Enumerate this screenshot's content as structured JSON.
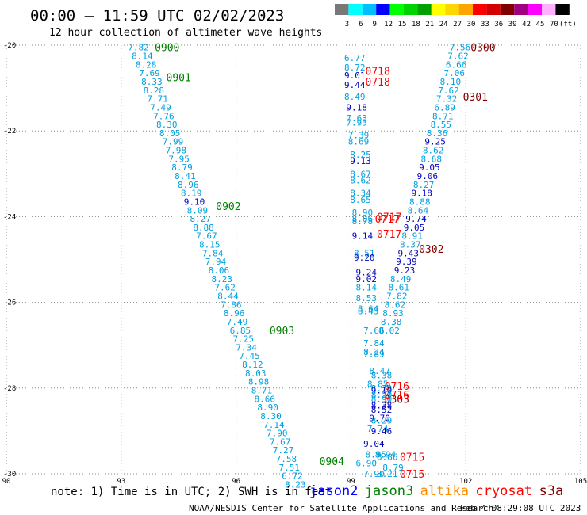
{
  "header": {
    "title": "00:00 – 11:59 UTC 02/02/2023",
    "subtitle": "12 hour collection of altimeter wave heights"
  },
  "colorbar": {
    "colors": [
      "#787878",
      "#00ffff",
      "#00bfff",
      "#0000ff",
      "#00ff00",
      "#00d400",
      "#00a000",
      "#ffff00",
      "#ffd700",
      "#ffa500",
      "#ff0000",
      "#d40000",
      "#800000",
      "#a00080",
      "#ff00ff",
      "#ffb0ff",
      "#000000"
    ],
    "labels": [
      "3",
      "6",
      "9",
      "12",
      "15",
      "18",
      "21",
      "24",
      "27",
      "30",
      "33",
      "36",
      "39",
      "42",
      "45",
      "70",
      "(ft)"
    ]
  },
  "chart_data": {
    "type": "scatter",
    "x_ticks": [
      "90",
      "93",
      "96",
      "99",
      "102",
      "105"
    ],
    "y_ticks": [
      "-20",
      "-22",
      "-24",
      "-26",
      "-28",
      "-30"
    ],
    "xlim": [
      90,
      105
    ],
    "ylim": [
      -30,
      -20
    ],
    "grid": "dotted",
    "value_colors": {
      "light": "#00a0e0",
      "dark": "#0000c0",
      "red": "#ff0000"
    },
    "tracks": [
      {
        "satellite": "jason3",
        "value_color": "light",
        "points": [
          {
            "lon": 93.45,
            "lat": -20.05,
            "v": "7.82"
          },
          {
            "lon": 93.55,
            "lat": -20.25,
            "v": "8.14"
          },
          {
            "lon": 93.65,
            "lat": -20.45,
            "v": "8.28"
          },
          {
            "lon": 93.74,
            "lat": -20.65,
            "v": "7.69"
          },
          {
            "lon": 93.8,
            "lat": -20.85,
            "v": "8.33"
          },
          {
            "lon": 93.85,
            "lat": -21.05,
            "v": "8.28"
          },
          {
            "lon": 93.95,
            "lat": -21.25,
            "v": "7.71"
          },
          {
            "lon": 94.03,
            "lat": -21.45,
            "v": "7.49"
          },
          {
            "lon": 94.11,
            "lat": -21.65,
            "v": "7.76"
          },
          {
            "lon": 94.19,
            "lat": -21.85,
            "v": "8.30"
          },
          {
            "lon": 94.27,
            "lat": -22.05,
            "v": "8.05"
          },
          {
            "lon": 94.35,
            "lat": -22.25,
            "v": "7.99"
          },
          {
            "lon": 94.43,
            "lat": -22.45,
            "v": "7.98"
          },
          {
            "lon": 94.51,
            "lat": -22.65,
            "v": "7.95"
          },
          {
            "lon": 94.59,
            "lat": -22.85,
            "v": "8.79"
          },
          {
            "lon": 94.67,
            "lat": -23.05,
            "v": "8.41"
          },
          {
            "lon": 94.75,
            "lat": -23.25,
            "v": "8.96"
          },
          {
            "lon": 94.83,
            "lat": -23.45,
            "v": "8.19"
          },
          {
            "lon": 94.91,
            "lat": -23.65,
            "v": "9.10",
            "c": "dark"
          },
          {
            "lon": 94.99,
            "lat": -23.85,
            "v": "8.09"
          },
          {
            "lon": 95.07,
            "lat": -24.05,
            "v": "8.27"
          },
          {
            "lon": 95.15,
            "lat": -24.25,
            "v": "8.88"
          },
          {
            "lon": 95.23,
            "lat": -24.45,
            "v": "7.67"
          },
          {
            "lon": 95.31,
            "lat": -24.65,
            "v": "8.15"
          },
          {
            "lon": 95.39,
            "lat": -24.85,
            "v": "7.84"
          },
          {
            "lon": 95.47,
            "lat": -25.05,
            "v": "7.94"
          },
          {
            "lon": 95.55,
            "lat": -25.25,
            "v": "8.06"
          },
          {
            "lon": 95.63,
            "lat": -25.45,
            "v": "8.23"
          },
          {
            "lon": 95.71,
            "lat": -25.65,
            "v": "7.62"
          },
          {
            "lon": 95.79,
            "lat": -25.85,
            "v": "8.44"
          },
          {
            "lon": 95.87,
            "lat": -26.05,
            "v": "7.86"
          },
          {
            "lon": 95.95,
            "lat": -26.25,
            "v": "8.96"
          },
          {
            "lon": 96.03,
            "lat": -26.45,
            "v": "7.49"
          },
          {
            "lon": 96.11,
            "lat": -26.65,
            "v": "6.85"
          },
          {
            "lon": 96.19,
            "lat": -26.85,
            "v": "7.25"
          },
          {
            "lon": 96.27,
            "lat": -27.05,
            "v": "7.34"
          },
          {
            "lon": 96.35,
            "lat": -27.25,
            "v": "7.45"
          },
          {
            "lon": 96.43,
            "lat": -27.45,
            "v": "8.12"
          },
          {
            "lon": 96.51,
            "lat": -27.65,
            "v": "8.03"
          },
          {
            "lon": 96.59,
            "lat": -27.85,
            "v": "8.98"
          },
          {
            "lon": 96.67,
            "lat": -28.05,
            "v": "8.71"
          },
          {
            "lon": 96.75,
            "lat": -28.25,
            "v": "8.66"
          },
          {
            "lon": 96.83,
            "lat": -28.45,
            "v": "8.90"
          },
          {
            "lon": 96.91,
            "lat": -28.65,
            "v": "8.30"
          },
          {
            "lon": 96.99,
            "lat": -28.85,
            "v": "7.14"
          },
          {
            "lon": 97.07,
            "lat": -29.05,
            "v": "7.90"
          },
          {
            "lon": 97.15,
            "lat": -29.25,
            "v": "7.67"
          },
          {
            "lon": 97.23,
            "lat": -29.45,
            "v": "7.27"
          },
          {
            "lon": 97.31,
            "lat": -29.65,
            "v": "7.58"
          },
          {
            "lon": 97.39,
            "lat": -29.85,
            "v": "7.51"
          },
          {
            "lon": 97.47,
            "lat": -30.05,
            "v": "6.72"
          },
          {
            "lon": 97.55,
            "lat": -30.25,
            "v": "8.23"
          }
        ]
      },
      {
        "satellite": "jason3",
        "value_color": "light",
        "points": [
          {
            "lon": 101.85,
            "lat": -20.05,
            "v": "7.56"
          },
          {
            "lon": 101.8,
            "lat": -20.25,
            "v": "7.62"
          },
          {
            "lon": 101.75,
            "lat": -20.45,
            "v": "6.66"
          },
          {
            "lon": 101.7,
            "lat": -20.65,
            "v": "7.06"
          },
          {
            "lon": 101.6,
            "lat": -20.85,
            "v": "8.10"
          },
          {
            "lon": 101.55,
            "lat": -21.05,
            "v": "7.62"
          },
          {
            "lon": 101.5,
            "lat": -21.25,
            "v": "7.32"
          },
          {
            "lon": 101.45,
            "lat": -21.45,
            "v": "6.89"
          },
          {
            "lon": 101.4,
            "lat": -21.65,
            "v": "8.71"
          },
          {
            "lon": 101.35,
            "lat": -21.85,
            "v": "8.55"
          },
          {
            "lon": 101.25,
            "lat": -22.05,
            "v": "8.36"
          },
          {
            "lon": 101.2,
            "lat": -22.25,
            "v": "9.25",
            "c": "dark"
          },
          {
            "lon": 101.15,
            "lat": -22.45,
            "v": "8.62"
          },
          {
            "lon": 101.1,
            "lat": -22.65,
            "v": "8.68"
          },
          {
            "lon": 101.05,
            "lat": -22.85,
            "v": "9.05",
            "c": "dark"
          },
          {
            "lon": 101.0,
            "lat": -23.05,
            "v": "9.06",
            "c": "dark"
          },
          {
            "lon": 100.9,
            "lat": -23.25,
            "v": "8.27"
          },
          {
            "lon": 100.85,
            "lat": -23.45,
            "v": "9.18",
            "c": "dark"
          },
          {
            "lon": 100.8,
            "lat": -23.65,
            "v": "8.88"
          },
          {
            "lon": 100.75,
            "lat": -23.85,
            "v": "8.64"
          },
          {
            "lon": 100.7,
            "lat": -24.05,
            "v": "9.74",
            "c": "dark"
          },
          {
            "lon": 100.65,
            "lat": -24.25,
            "v": "9.05",
            "c": "dark"
          },
          {
            "lon": 100.6,
            "lat": -24.45,
            "v": "8.91"
          },
          {
            "lon": 100.55,
            "lat": -24.65,
            "v": "8.37"
          },
          {
            "lon": 100.5,
            "lat": -24.85,
            "v": "9.43",
            "c": "dark"
          },
          {
            "lon": 100.45,
            "lat": -25.05,
            "v": "9.39",
            "c": "dark"
          },
          {
            "lon": 100.4,
            "lat": -25.25,
            "v": "9.23",
            "c": "dark"
          },
          {
            "lon": 100.3,
            "lat": -25.45,
            "v": "8.49"
          },
          {
            "lon": 100.25,
            "lat": -25.65,
            "v": "8.61"
          },
          {
            "lon": 100.2,
            "lat": -25.85,
            "v": "7.82"
          },
          {
            "lon": 100.15,
            "lat": -26.05,
            "v": "8.62"
          },
          {
            "lon": 100.1,
            "lat": -26.25,
            "v": "8.93"
          },
          {
            "lon": 100.05,
            "lat": -26.45,
            "v": "8.38"
          },
          {
            "lon": 100.0,
            "lat": -26.65,
            "v": "8.02"
          }
        ]
      },
      {
        "satellite": "mixed",
        "value_color": "light",
        "points": [
          {
            "lon": 99.1,
            "lat": -20.3,
            "v": "6.77"
          },
          {
            "lon": 99.1,
            "lat": -20.52,
            "v": "8.72"
          },
          {
            "lon": 99.1,
            "lat": -20.7,
            "v": "9.01",
            "c": "dark"
          },
          {
            "lon": 99.1,
            "lat": -20.92,
            "v": "9.44",
            "c": "dark"
          },
          {
            "lon": 99.1,
            "lat": -21.2,
            "v": "8.49"
          },
          {
            "lon": 99.15,
            "lat": -21.45,
            "v": "9.18",
            "c": "dark"
          },
          {
            "lon": 99.15,
            "lat": -21.7,
            "v": "7.63"
          },
          {
            "lon": 99.15,
            "lat": -21.8,
            "v": "7.93"
          },
          {
            "lon": 99.2,
            "lat": -22.1,
            "v": "7.39"
          },
          {
            "lon": 99.2,
            "lat": -22.25,
            "v": "8.69"
          },
          {
            "lon": 99.25,
            "lat": -22.55,
            "v": "8.25"
          },
          {
            "lon": 99.25,
            "lat": -22.7,
            "v": "9.13",
            "c": "dark"
          },
          {
            "lon": 99.25,
            "lat": -23.0,
            "v": "8.67"
          },
          {
            "lon": 99.25,
            "lat": -23.15,
            "v": "8.62"
          },
          {
            "lon": 99.25,
            "lat": -23.45,
            "v": "8.34"
          },
          {
            "lon": 99.25,
            "lat": -23.6,
            "v": "8.65"
          },
          {
            "lon": 99.3,
            "lat": -23.9,
            "v": "8.90"
          },
          {
            "lon": 99.3,
            "lat": -24.05,
            "v": "8.86"
          },
          {
            "lon": 99.3,
            "lat": -24.1,
            "v": "8.78"
          },
          {
            "lon": 99.3,
            "lat": -24.45,
            "v": "9.14",
            "c": "dark"
          },
          {
            "lon": 99.35,
            "lat": -24.85,
            "v": "8.51"
          },
          {
            "lon": 99.35,
            "lat": -24.95,
            "v": "9.20",
            "c": "dark"
          },
          {
            "lon": 99.4,
            "lat": -25.3,
            "v": "9.24",
            "c": "dark"
          },
          {
            "lon": 99.4,
            "lat": -25.45,
            "v": "9.02",
            "c": "dark"
          },
          {
            "lon": 99.4,
            "lat": -25.65,
            "v": "8.14"
          },
          {
            "lon": 99.4,
            "lat": -25.9,
            "v": "8.53"
          },
          {
            "lon": 99.45,
            "lat": -26.15,
            "v": "8.64"
          },
          {
            "lon": 99.45,
            "lat": -26.2,
            "v": "8.43"
          },
          {
            "lon": 99.6,
            "lat": -26.65,
            "v": "7.66"
          },
          {
            "lon": 99.6,
            "lat": -26.95,
            "v": "7.84"
          },
          {
            "lon": 99.6,
            "lat": -27.15,
            "v": "8.24"
          },
          {
            "lon": 99.6,
            "lat": -27.2,
            "v": "7.89"
          },
          {
            "lon": 99.75,
            "lat": -27.6,
            "v": "8.47"
          },
          {
            "lon": 99.8,
            "lat": -27.7,
            "v": "8.38"
          },
          {
            "lon": 99.7,
            "lat": -27.9,
            "v": "8.85"
          },
          {
            "lon": 99.8,
            "lat": -28.0,
            "v": "8.79"
          },
          {
            "lon": 99.8,
            "lat": -28.05,
            "v": "9.10",
            "c": "dark"
          },
          {
            "lon": 99.8,
            "lat": -28.15,
            "v": "8.20"
          },
          {
            "lon": 99.8,
            "lat": -28.25,
            "v": "8.90"
          },
          {
            "lon": 99.8,
            "lat": -28.4,
            "v": "8.38",
            "c": "dark"
          },
          {
            "lon": 99.8,
            "lat": -28.5,
            "v": "8.52",
            "c": "dark"
          },
          {
            "lon": 99.75,
            "lat": -28.7,
            "v": "9.70",
            "c": "dark"
          },
          {
            "lon": 99.8,
            "lat": -28.75,
            "v": "8.29"
          },
          {
            "lon": 99.7,
            "lat": -28.95,
            "v": "7.74"
          },
          {
            "lon": 99.8,
            "lat": -29.0,
            "v": "9.46",
            "c": "dark"
          },
          {
            "lon": 99.6,
            "lat": -29.3,
            "v": "9.04",
            "c": "dark"
          },
          {
            "lon": 99.65,
            "lat": -29.55,
            "v": "8.95"
          },
          {
            "lon": 99.9,
            "lat": -29.55,
            "v": "8.94"
          },
          {
            "lon": 99.95,
            "lat": -29.6,
            "v": "8.86"
          },
          {
            "lon": 99.4,
            "lat": -29.75,
            "v": "6.90"
          },
          {
            "lon": 99.6,
            "lat": -30.0,
            "v": "7.90"
          },
          {
            "lon": 99.95,
            "lat": -30.0,
            "v": "8.21"
          },
          {
            "lon": 100.1,
            "lat": -29.85,
            "v": "8.79"
          }
        ]
      }
    ],
    "time_labels": [
      {
        "lon": 94.2,
        "lat": -20.05,
        "text": "0900",
        "color": "#008000"
      },
      {
        "lon": 94.5,
        "lat": -20.75,
        "text": "0901",
        "color": "#008000"
      },
      {
        "lon": 95.8,
        "lat": -23.75,
        "text": "0902",
        "color": "#008000"
      },
      {
        "lon": 97.2,
        "lat": -26.65,
        "text": "0903",
        "color": "#008000"
      },
      {
        "lon": 98.5,
        "lat": -29.7,
        "text": "0904",
        "color": "#008000"
      },
      {
        "lon": 102.45,
        "lat": -20.05,
        "text": "0300",
        "color": "#800000"
      },
      {
        "lon": 102.25,
        "lat": -21.2,
        "text": "0301",
        "color": "#800000"
      },
      {
        "lon": 101.1,
        "lat": -24.75,
        "text": "0302",
        "color": "#800000"
      },
      {
        "lon": 100.2,
        "lat": -28.25,
        "text": "0303",
        "color": "#800000"
      },
      {
        "lon": 99.7,
        "lat": -20.6,
        "text": "0718",
        "color": "#ff0000"
      },
      {
        "lon": 99.7,
        "lat": -20.85,
        "text": "0718",
        "color": "#ff0000"
      },
      {
        "lon": 100.0,
        "lat": -24.0,
        "text": "0717",
        "color": "#ff0000"
      },
      {
        "lon": 99.95,
        "lat": -24.05,
        "text": "0717",
        "color": "#ff0000"
      },
      {
        "lon": 100.0,
        "lat": -24.4,
        "text": "0717",
        "color": "#ff0000"
      },
      {
        "lon": 100.2,
        "lat": -27.95,
        "text": "0716",
        "color": "#ff0000"
      },
      {
        "lon": 100.2,
        "lat": -28.15,
        "text": "0716",
        "color": "#ff0000"
      },
      {
        "lon": 100.6,
        "lat": -29.6,
        "text": "0715",
        "color": "#ff0000"
      },
      {
        "lon": 100.6,
        "lat": -30.0,
        "text": "0715",
        "color": "#ff0000"
      }
    ]
  },
  "footer": {
    "note": "note: 1) Time is in UTC; 2) SWH is in feet",
    "legend": [
      {
        "label": "jason2",
        "color": "#0000ff"
      },
      {
        "label": "jason3",
        "color": "#008000"
      },
      {
        "label": "altika",
        "color": "#ff8c00"
      },
      {
        "label": "cryosat",
        "color": "#ff0000"
      },
      {
        "label": "s3a",
        "color": "#800000"
      }
    ],
    "credit": "NOAA/NESDIS Center for Satellite Applications and Research",
    "timestamp": "Feb  4 08:29:08 UTC 2023"
  }
}
